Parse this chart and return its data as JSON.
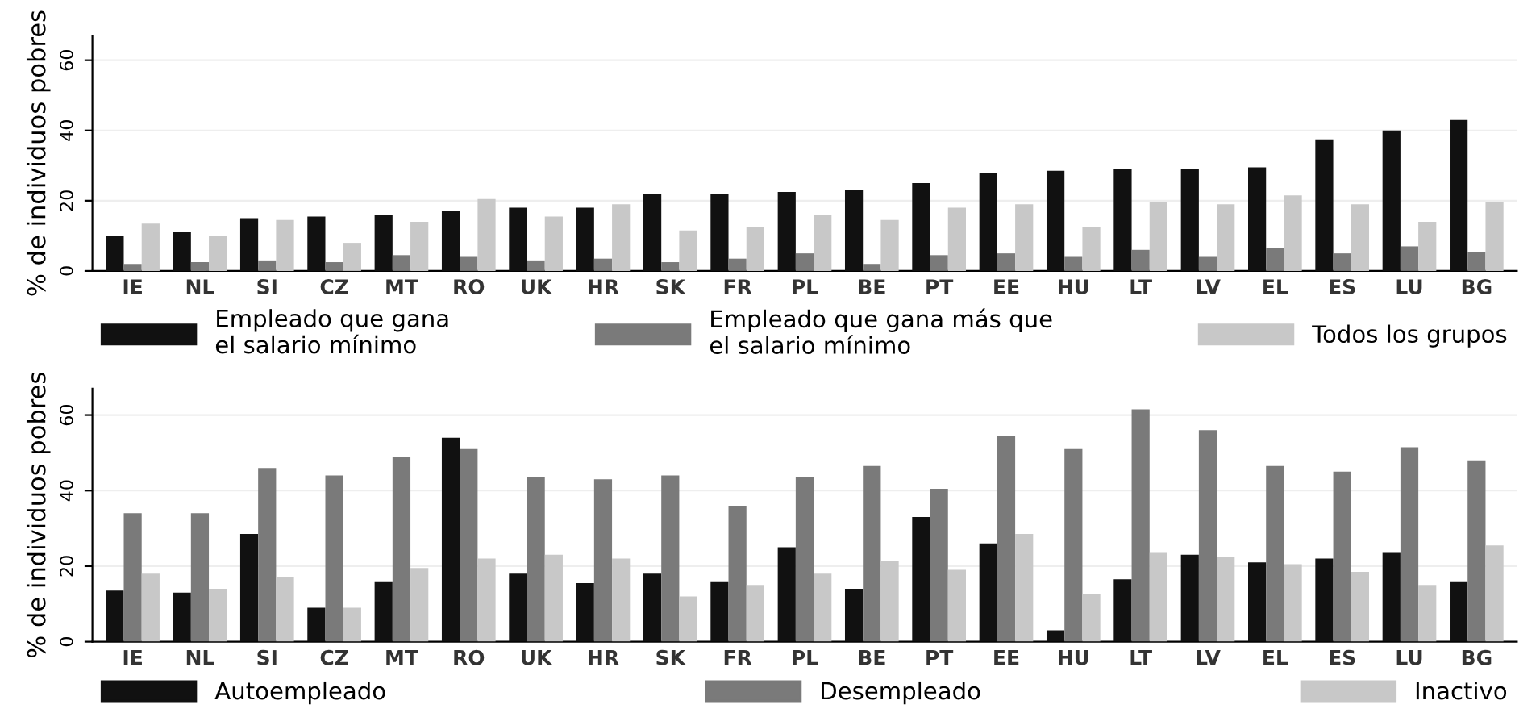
{
  "chart_data": [
    {
      "type": "bar",
      "ylabel": "% de individuos pobres",
      "categories": [
        "IE",
        "NL",
        "SI",
        "CZ",
        "MT",
        "RO",
        "UK",
        "HR",
        "SK",
        "FR",
        "PL",
        "BE",
        "PT",
        "EE",
        "HU",
        "LT",
        "LV",
        "EL",
        "ES",
        "LU",
        "BG"
      ],
      "series": [
        {
          "name": "Empleado que gana\nel salario mínimo",
          "color": "#111111",
          "values": [
            10,
            11,
            15,
            15.5,
            16,
            17,
            18,
            18,
            22,
            22,
            22.5,
            23,
            25,
            28,
            28.5,
            29,
            29,
            29.5,
            37.5,
            40,
            43
          ]
        },
        {
          "name": "Empleado que gana más que\nel salario mínimo",
          "color": "#7a7a7a",
          "values": [
            2,
            2.5,
            3,
            2.5,
            4.5,
            4,
            3,
            3.5,
            2.5,
            3.5,
            5,
            2,
            4.5,
            5,
            4,
            6,
            4,
            6.5,
            5,
            7,
            5.5
          ]
        },
        {
          "name": "Todos los grupos",
          "color": "#c8c8c8",
          "values": [
            13.5,
            10,
            14.5,
            8,
            14,
            20.5,
            15.5,
            19,
            11.5,
            12.5,
            16,
            14.5,
            18,
            19,
            12.5,
            19.5,
            19,
            21.5,
            19,
            14,
            19.5
          ]
        }
      ],
      "ylim": [
        0,
        67
      ],
      "yticks": [
        0,
        20,
        40,
        60
      ],
      "grid": "y",
      "legend": "bottom"
    },
    {
      "type": "bar",
      "ylabel": "% de individuos pobres",
      "categories": [
        "IE",
        "NL",
        "SI",
        "CZ",
        "MT",
        "RO",
        "UK",
        "HR",
        "SK",
        "FR",
        "PL",
        "BE",
        "PT",
        "EE",
        "HU",
        "LT",
        "LV",
        "EL",
        "ES",
        "LU",
        "BG"
      ],
      "series": [
        {
          "name": "Autoempleado",
          "color": "#111111",
          "values": [
            13.5,
            13,
            28.5,
            9,
            16,
            54,
            18,
            15.5,
            18,
            16,
            25,
            14,
            33,
            26,
            3,
            16.5,
            23,
            21,
            22,
            23.5,
            16
          ]
        },
        {
          "name": "Desempleado",
          "color": "#7a7a7a",
          "values": [
            34,
            34,
            46,
            44,
            49,
            51,
            43.5,
            43,
            44,
            36,
            43.5,
            46.5,
            40.5,
            54.5,
            51,
            61.5,
            56,
            46.5,
            45,
            51.5,
            48
          ]
        },
        {
          "name": "Inactivo",
          "color": "#c8c8c8",
          "values": [
            18,
            14,
            17,
            9,
            19.5,
            22,
            23,
            22,
            12,
            15,
            18,
            21.5,
            19,
            28.5,
            12.5,
            23.5,
            22.5,
            20.5,
            18.5,
            15,
            25.5
          ]
        }
      ],
      "ylim": [
        0,
        67
      ],
      "yticks": [
        0,
        20,
        40,
        60
      ],
      "grid": "y",
      "legend": "bottom"
    }
  ]
}
